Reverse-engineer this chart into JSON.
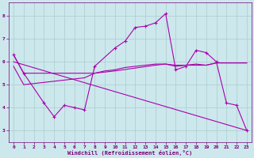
{
  "background_color": "#cce8ed",
  "grid_color": "#aacccc",
  "line_color": "#aa00aa",
  "xlabel": "Windchill (Refroidissement éolien,°C)",
  "ylim": [
    2.5,
    8.6
  ],
  "xlim": [
    -0.5,
    23.5
  ],
  "yticks": [
    3,
    4,
    5,
    6,
    7,
    8
  ],
  "xticks": [
    0,
    1,
    2,
    3,
    4,
    5,
    6,
    7,
    8,
    9,
    10,
    11,
    12,
    13,
    14,
    15,
    16,
    17,
    18,
    19,
    20,
    21,
    22,
    23
  ],
  "series": [
    {
      "x": [
        0,
        1,
        3,
        4,
        5,
        6,
        7,
        8,
        10,
        11,
        12,
        13,
        14,
        15,
        16,
        17,
        18,
        19,
        20,
        21,
        22,
        23
      ],
      "y": [
        6.3,
        5.5,
        4.2,
        3.6,
        4.1,
        4.0,
        3.9,
        5.8,
        6.6,
        6.9,
        7.5,
        7.55,
        7.7,
        8.1,
        5.65,
        5.8,
        6.5,
        6.4,
        6.0,
        4.2,
        4.1,
        3.0
      ],
      "marker": true
    },
    {
      "x": [
        0,
        1,
        8,
        10,
        14,
        15,
        16,
        17,
        18,
        19,
        20,
        21,
        22,
        23
      ],
      "y": [
        6.3,
        5.5,
        5.5,
        5.6,
        5.85,
        5.9,
        5.85,
        5.85,
        5.9,
        5.85,
        5.95,
        5.95,
        5.95,
        5.95
      ],
      "marker": false
    },
    {
      "x": [
        0,
        23
      ],
      "y": [
        6.0,
        3.0
      ],
      "marker": false
    },
    {
      "x": [
        0,
        1,
        7,
        8,
        9,
        10,
        11,
        12,
        13,
        14,
        15,
        16,
        17,
        18,
        19,
        20,
        21,
        22,
        23
      ],
      "y": [
        5.8,
        5.0,
        5.3,
        5.5,
        5.6,
        5.65,
        5.75,
        5.8,
        5.85,
        5.9,
        5.9,
        5.8,
        5.85,
        5.85,
        5.85,
        5.95,
        5.95,
        5.95,
        5.95
      ],
      "marker": false
    }
  ]
}
